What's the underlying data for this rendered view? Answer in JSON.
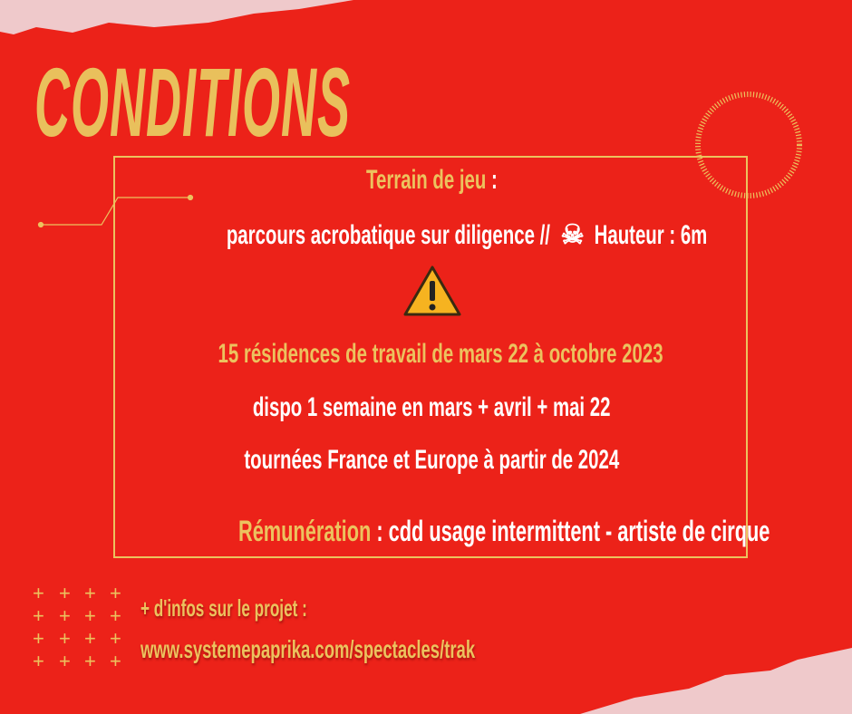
{
  "title": "CONDITIONS",
  "terrain": {
    "label": "Terrain de jeu",
    "colon": " :"
  },
  "parcours": {
    "text": "parcours acrobatique sur diligence //",
    "icon": "skull-crossbones-icon",
    "hauteur": "Hauteur : 6m"
  },
  "warning_icon": "warning-icon",
  "residences": "15 résidences de travail de mars 22 à octobre 2023",
  "dispo": "dispo 1 semaine en mars +  avril + mai 22",
  "tournees": "tournées France et Europe à partir de 2024",
  "remuneration": {
    "label": "Rémunération",
    "text": " : cdd usage intermittent - artiste de cirque"
  },
  "footer": {
    "infos": "+ d'infos sur le projet :",
    "url": "www.systemepaprika.com/spectacles/trak"
  },
  "colors": {
    "background": "#ec2219",
    "gold": "#ecc25e",
    "paper": "#efc9cb"
  }
}
